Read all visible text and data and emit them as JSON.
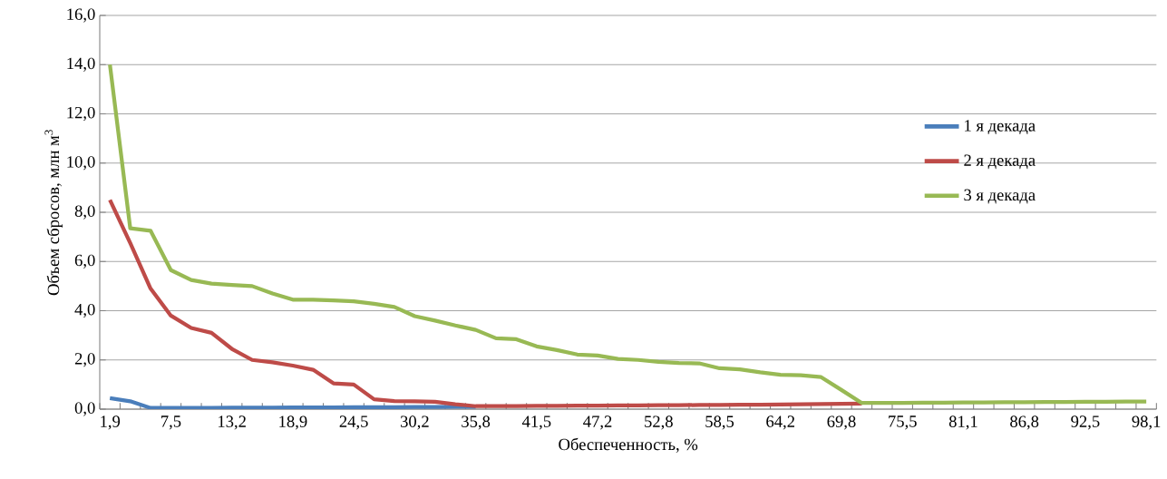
{
  "chart_data": {
    "type": "line",
    "xlabel": "Обеспеченность, %",
    "ylabel": "Объем сбросов, млн м$^{3}$",
    "categories": [
      "1,9",
      null,
      null,
      "7,5",
      null,
      null,
      "13,2",
      null,
      null,
      "18,9",
      null,
      null,
      "24,5",
      null,
      null,
      "30,2",
      null,
      null,
      "35,8",
      null,
      null,
      "41,5",
      null,
      null,
      "47,2",
      null,
      null,
      "52,8",
      null,
      null,
      "58,5",
      null,
      null,
      "64,2",
      null,
      null,
      "69,8",
      null,
      null,
      "75,5",
      null,
      null,
      "81,1",
      null,
      null,
      "86,8",
      null,
      null,
      "92,5",
      null,
      null,
      "98,1"
    ],
    "ylim": [
      0,
      16
    ],
    "yticks": [
      {
        "value": 0,
        "label": "0,0"
      },
      {
        "value": 2,
        "label": "2,0"
      },
      {
        "value": 4,
        "label": "4,0"
      },
      {
        "value": 6,
        "label": "6,0"
      },
      {
        "value": 8,
        "label": "8,0"
      },
      {
        "value": 10,
        "label": "10,0"
      },
      {
        "value": 12,
        "label": "12,0"
      },
      {
        "value": 14,
        "label": "14,0"
      },
      {
        "value": 16,
        "label": "16,0"
      }
    ],
    "grid": "y",
    "legend": "right",
    "marker": "none",
    "line_style": "solid",
    "series": [
      {
        "name": "1 я декада",
        "color": "#4a7ebb",
        "values": [
          0.45,
          0.32,
          0.05,
          0.05,
          0.05,
          0.05,
          0.06,
          0.06,
          0.06,
          0.07,
          0.07,
          0.07,
          0.08,
          0.08,
          0.08,
          0.09,
          0.09,
          0.1,
          0.1,
          null,
          null,
          null,
          null,
          null,
          null,
          null,
          null,
          null,
          null,
          null,
          null,
          null,
          null,
          null,
          null,
          null,
          null,
          null,
          null,
          null,
          null,
          null,
          null,
          null,
          null,
          null,
          null,
          null,
          null,
          null,
          null,
          null
        ]
      },
      {
        "name": "2 я декада",
        "color": "#be4b48",
        "values": [
          8.5,
          6.75,
          4.9,
          3.8,
          3.3,
          3.1,
          2.45,
          2.0,
          1.9,
          1.77,
          1.6,
          1.05,
          1.0,
          0.4,
          0.33,
          0.32,
          0.3,
          0.2,
          0.12,
          0.12,
          0.12,
          0.13,
          0.13,
          0.14,
          0.14,
          0.15,
          0.15,
          0.16,
          0.16,
          0.17,
          0.17,
          0.18,
          0.18,
          0.19,
          0.2,
          0.21,
          0.22,
          0.23,
          null,
          null,
          null,
          null,
          null,
          null,
          null,
          null,
          null,
          null,
          null,
          null,
          null,
          null
        ]
      },
      {
        "name": "3 я декада",
        "color": "#98b954",
        "values": [
          14.0,
          7.35,
          7.25,
          5.65,
          5.25,
          5.1,
          5.05,
          5.0,
          4.7,
          4.45,
          4.45,
          4.42,
          4.38,
          4.28,
          4.15,
          3.78,
          3.6,
          3.4,
          3.22,
          2.88,
          2.84,
          2.55,
          2.4,
          2.22,
          2.18,
          2.04,
          2.0,
          1.92,
          1.88,
          1.86,
          1.66,
          1.62,
          1.5,
          1.4,
          1.38,
          1.3,
          0.78,
          0.25,
          0.25,
          0.25,
          0.26,
          0.26,
          0.27,
          0.27,
          0.28,
          0.28,
          0.29,
          0.29,
          0.3,
          0.3,
          0.31,
          0.31
        ]
      }
    ]
  }
}
